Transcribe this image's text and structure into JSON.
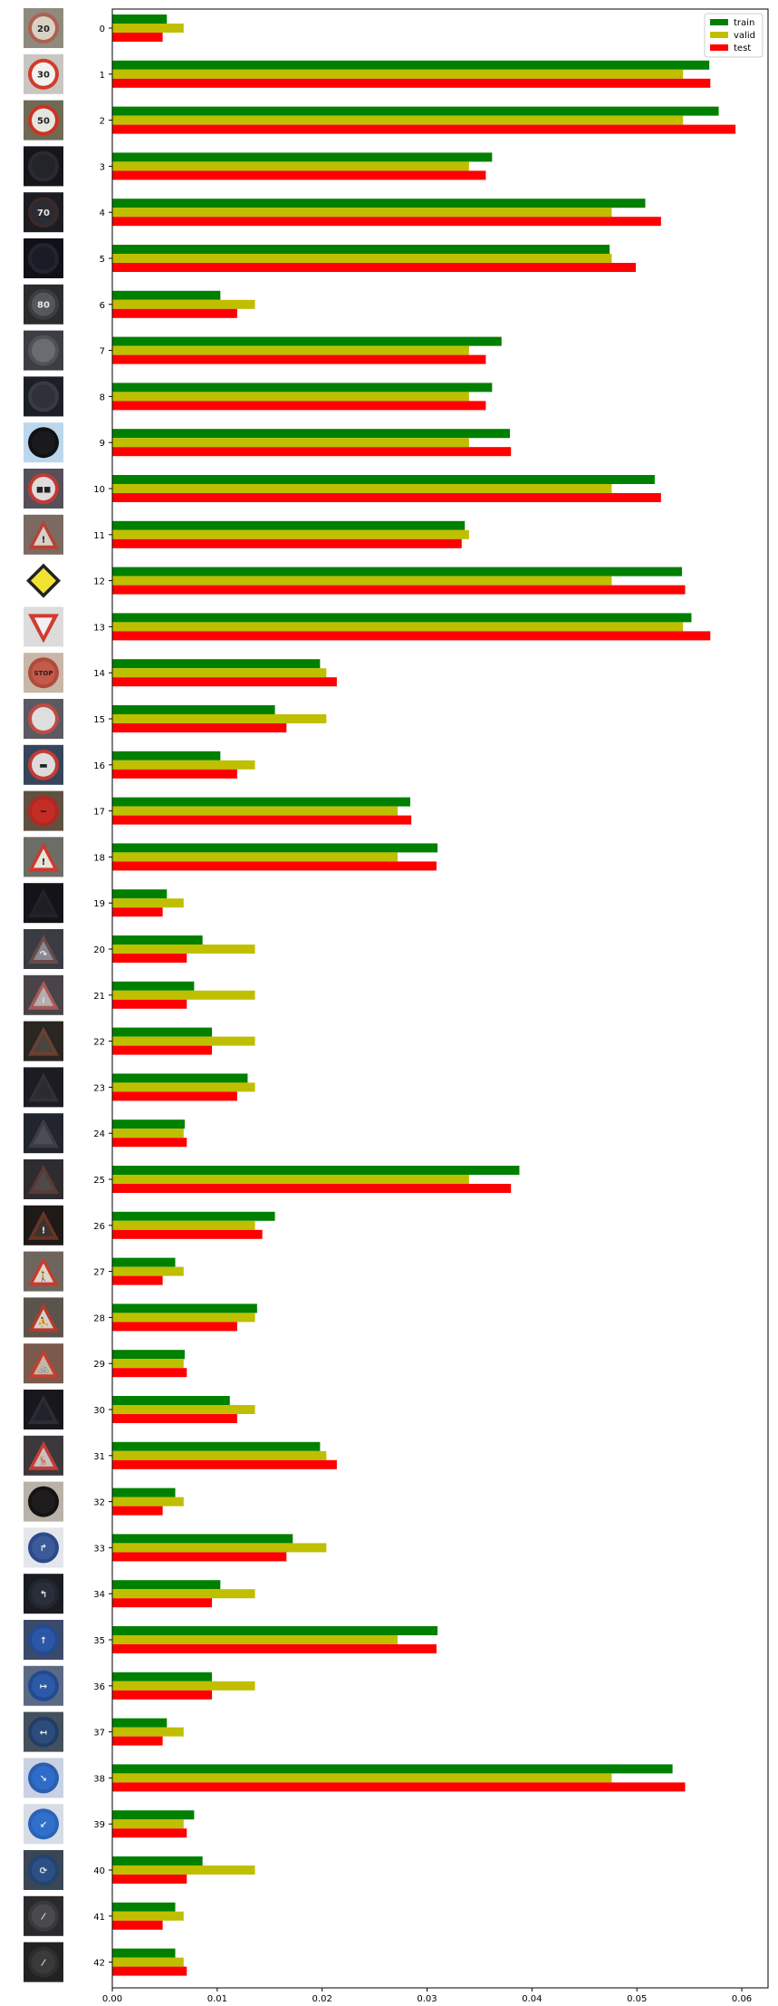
{
  "chart_data": {
    "type": "bar",
    "orientation": "horizontal",
    "title": "",
    "xlabel": "",
    "ylabel": "",
    "xlim": [
      0,
      0.0625
    ],
    "x_ticks": [
      0.0,
      0.01,
      0.02,
      0.03,
      0.04,
      0.05,
      0.06
    ],
    "x_tick_labels": [
      "0.00",
      "0.01",
      "0.02",
      "0.03",
      "0.04",
      "0.05",
      "0.06"
    ],
    "grid": false,
    "legend_placement": "top-right",
    "categories": [
      "0",
      "1",
      "2",
      "3",
      "4",
      "5",
      "6",
      "7",
      "8",
      "9",
      "10",
      "11",
      "12",
      "13",
      "14",
      "15",
      "16",
      "17",
      "18",
      "19",
      "20",
      "21",
      "22",
      "23",
      "24",
      "25",
      "26",
      "27",
      "28",
      "29",
      "30",
      "31",
      "32",
      "33",
      "34",
      "35",
      "36",
      "37",
      "38",
      "39",
      "40",
      "41",
      "42"
    ],
    "series": [
      {
        "name": "train",
        "color": "#008000",
        "values": [
          0.0052,
          0.0569,
          0.0578,
          0.0362,
          0.0508,
          0.0474,
          0.0103,
          0.0371,
          0.0362,
          0.0379,
          0.0517,
          0.0336,
          0.0543,
          0.0552,
          0.0198,
          0.0155,
          0.0103,
          0.0284,
          0.031,
          0.0052,
          0.0086,
          0.0078,
          0.0095,
          0.0129,
          0.0069,
          0.0388,
          0.0155,
          0.006,
          0.0138,
          0.0069,
          0.0112,
          0.0198,
          0.006,
          0.0172,
          0.0103,
          0.031,
          0.0095,
          0.0052,
          0.0534,
          0.0078,
          0.0086,
          0.006,
          0.006
        ]
      },
      {
        "name": "valid",
        "color": "#bfbf00",
        "values": [
          0.0068,
          0.0544,
          0.0544,
          0.034,
          0.0476,
          0.0476,
          0.0136,
          0.034,
          0.034,
          0.034,
          0.0476,
          0.034,
          0.0476,
          0.0544,
          0.0204,
          0.0204,
          0.0136,
          0.0272,
          0.0272,
          0.0068,
          0.0136,
          0.0136,
          0.0136,
          0.0136,
          0.0068,
          0.034,
          0.0136,
          0.0068,
          0.0136,
          0.0068,
          0.0136,
          0.0204,
          0.0068,
          0.0204,
          0.0136,
          0.0272,
          0.0136,
          0.0068,
          0.0476,
          0.0068,
          0.0136,
          0.0068,
          0.0068
        ]
      },
      {
        "name": "test",
        "color": "#ff0000",
        "values": [
          0.0048,
          0.057,
          0.0594,
          0.0356,
          0.0523,
          0.0499,
          0.0119,
          0.0356,
          0.0356,
          0.038,
          0.0523,
          0.0333,
          0.0546,
          0.057,
          0.0214,
          0.0166,
          0.0119,
          0.0285,
          0.0309,
          0.0048,
          0.0071,
          0.0071,
          0.0095,
          0.0119,
          0.0071,
          0.038,
          0.0143,
          0.0048,
          0.0119,
          0.0071,
          0.0119,
          0.0214,
          0.0048,
          0.0166,
          0.0095,
          0.0309,
          0.0095,
          0.0048,
          0.0546,
          0.0071,
          0.0071,
          0.0048,
          0.0071
        ]
      }
    ],
    "thumbnails": [
      {
        "shape": "circle-sign",
        "bg": "#8f8a7e",
        "fill": "#d8d2c6",
        "rim": "#b06050",
        "glyph": "20"
      },
      {
        "shape": "circle-sign",
        "bg": "#c9c6c2",
        "fill": "#f2f2f0",
        "rim": "#d33a2c",
        "glyph": "30"
      },
      {
        "shape": "circle-sign",
        "bg": "#6f6a55",
        "fill": "#e6e6e0",
        "rim": "#cc3322",
        "glyph": "50"
      },
      {
        "shape": "circle-sign",
        "bg": "#15151a",
        "fill": "#22242a",
        "rim": "#2a2a30",
        "glyph": ""
      },
      {
        "shape": "circle-sign",
        "bg": "#1c1c22",
        "fill": "#2b2b33",
        "rim": "#3a2a2a",
        "glyph": "70"
      },
      {
        "shape": "circle-sign",
        "bg": "#101018",
        "fill": "#191c26",
        "rim": "#24242e",
        "glyph": ""
      },
      {
        "shape": "circle-sign",
        "bg": "#2a2c2e",
        "fill": "#55585a",
        "rim": "#3b3d3f",
        "glyph": "80"
      },
      {
        "shape": "circle-sign",
        "bg": "#3d3e44",
        "fill": "#6a6c72",
        "rim": "#50525a",
        "glyph": ""
      },
      {
        "shape": "circle-sign",
        "bg": "#1d1f26",
        "fill": "#2e313a",
        "rim": "#383a44",
        "glyph": ""
      },
      {
        "shape": "circle-sign",
        "bg": "#bcd6ec",
        "fill": "#1a1a1e",
        "rim": "#111114",
        "glyph": ""
      },
      {
        "shape": "circle-sign",
        "bg": "#55505a",
        "fill": "#e0dcdc",
        "rim": "#c23a34",
        "glyph": "◼◼"
      },
      {
        "shape": "triangle-sign",
        "bg": "#7a6a62",
        "fill": "#d8d0c8",
        "rim": "#b84234",
        "glyph": "!"
      },
      {
        "shape": "diamond-sign",
        "bg": "#ffffff",
        "fill": "#f4e232",
        "rim": "#ffffff",
        "glyph": ""
      },
      {
        "shape": "yield-sign",
        "bg": "#dcdcdc",
        "fill": "#f0f0f0",
        "rim": "#d23a30",
        "glyph": ""
      },
      {
        "shape": "circle-sign",
        "bg": "#c8b6a6",
        "fill": "#c45a4a",
        "rim": "#b04a3a",
        "glyph": "STOP"
      },
      {
        "shape": "circle-sign",
        "bg": "#5b5a62",
        "fill": "#dedede",
        "rim": "#c04a44",
        "glyph": ""
      },
      {
        "shape": "circle-sign",
        "bg": "#36445c",
        "fill": "#dcdcdc",
        "rim": "#c23a34",
        "glyph": "▬"
      },
      {
        "shape": "circle-sign",
        "bg": "#5f5040",
        "fill": "#c42c26",
        "rim": "#b02822",
        "glyph": "━"
      },
      {
        "shape": "triangle-sign",
        "bg": "#6e6c66",
        "fill": "#e8e4dc",
        "rim": "#cc3a30",
        "glyph": "!"
      },
      {
        "shape": "triangle-sign",
        "bg": "#141418",
        "fill": "#1e1e24",
        "rim": "#22222a",
        "glyph": ""
      },
      {
        "shape": "triangle-sign",
        "bg": "#3a3c44",
        "fill": "#8a8a92",
        "rim": "#6a4a4a",
        "glyph": "↷"
      },
      {
        "shape": "triangle-sign",
        "bg": "#4a4448",
        "fill": "#b4aeb0",
        "rim": "#a85a58",
        "glyph": "≀"
      },
      {
        "shape": "triangle-sign",
        "bg": "#2a2622",
        "fill": "#4a443e",
        "rim": "#6a4030",
        "glyph": ""
      },
      {
        "shape": "triangle-sign",
        "bg": "#1c1c22",
        "fill": "#2a2a30",
        "rim": "#30303a",
        "glyph": ""
      },
      {
        "shape": "triangle-sign",
        "bg": "#22242e",
        "fill": "#4a4c56",
        "rim": "#3a3c46",
        "glyph": ""
      },
      {
        "shape": "triangle-sign",
        "bg": "#2e2c2e",
        "fill": "#4e4a4a",
        "rim": "#5a3a36",
        "glyph": ""
      },
      {
        "shape": "triangle-sign",
        "bg": "#1e1a18",
        "fill": "#3a3430",
        "rim": "#6a3424",
        "glyph": "!"
      },
      {
        "shape": "triangle-sign",
        "bg": "#6e665e",
        "fill": "#ddd6cc",
        "rim": "#c43c2e",
        "glyph": "🚶"
      },
      {
        "shape": "triangle-sign",
        "bg": "#5a544c",
        "fill": "#d6d0c6",
        "rim": "#b23a2c",
        "glyph": "⛹"
      },
      {
        "shape": "triangle-sign",
        "bg": "#7a5a4c",
        "fill": "#c6b6a8",
        "rim": "#c2402c",
        "glyph": "🚲"
      },
      {
        "shape": "triangle-sign",
        "bg": "#18181c",
        "fill": "#22222a",
        "rim": "#2c2c34",
        "glyph": ""
      },
      {
        "shape": "triangle-sign",
        "bg": "#3c383c",
        "fill": "#c8c2c2",
        "rim": "#c43c36",
        "glyph": "🦌"
      },
      {
        "shape": "circle-sign",
        "bg": "#b8b2a8",
        "fill": "#1e1c1c",
        "rim": "#141212",
        "glyph": ""
      },
      {
        "shape": "circle-sign",
        "bg": "#e4e6ec",
        "fill": "#3c5a9a",
        "rim": "#2c4a8a",
        "glyph": "↱"
      },
      {
        "shape": "circle-sign",
        "bg": "#1a1c22",
        "fill": "#2a2e3a",
        "rim": "#222630",
        "glyph": "↰"
      },
      {
        "shape": "circle-sign",
        "bg": "#3c4a6a",
        "fill": "#2c56a6",
        "rim": "#244a92",
        "glyph": "↑"
      },
      {
        "shape": "circle-sign",
        "bg": "#5a6a84",
        "fill": "#2c5aa8",
        "rim": "#234a90",
        "glyph": "↦"
      },
      {
        "shape": "circle-sign",
        "bg": "#44505c",
        "fill": "#2c4c7c",
        "rim": "#223e66",
        "glyph": "↤"
      },
      {
        "shape": "circle-sign",
        "bg": "#c8d2e2",
        "fill": "#2e6cc8",
        "rim": "#2a5eb0",
        "glyph": "↘"
      },
      {
        "shape": "circle-sign",
        "bg": "#d6dce6",
        "fill": "#3070cc",
        "rim": "#2a62b8",
        "glyph": "↙"
      },
      {
        "shape": "circle-sign",
        "bg": "#3a4654",
        "fill": "#2c5086",
        "rim": "#244272",
        "glyph": "⟳"
      },
      {
        "shape": "circle-sign",
        "bg": "#2a2a2c",
        "fill": "#4a4a4c",
        "rim": "#3a3a3c",
        "glyph": "⁄"
      },
      {
        "shape": "circle-sign",
        "bg": "#222222",
        "fill": "#3a3a3a",
        "rim": "#2e2e2e",
        "glyph": "⁄"
      }
    ]
  }
}
